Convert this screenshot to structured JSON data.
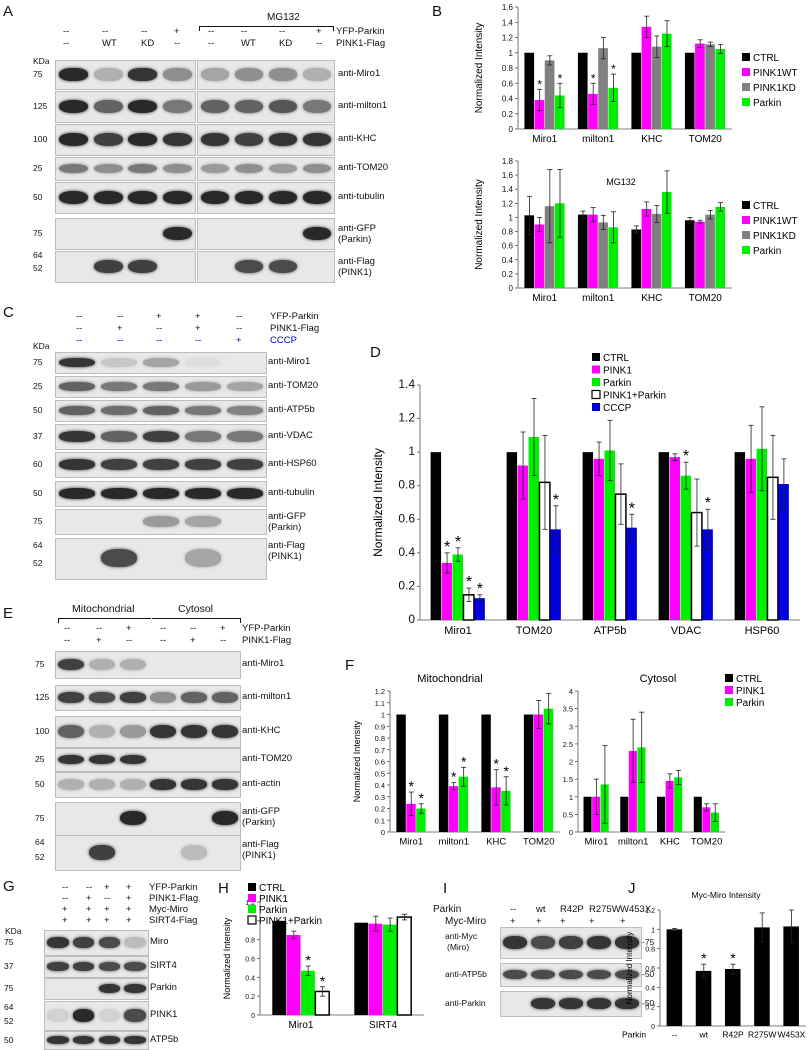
{
  "panels": {
    "A": {
      "letter": "A",
      "mg_label": "MG132",
      "row1_left": [
        "--",
        "--",
        "--",
        "+"
      ],
      "row2_left": [
        "--",
        "WT",
        "KD",
        "--"
      ],
      "row1_right": [
        "--",
        "--",
        "--",
        "+"
      ],
      "row2_right": [
        "--",
        "WT",
        "KD",
        "--"
      ],
      "treat1": "YFP-Parkin",
      "treat2": "PINK1-Flag",
      "kda": "KDa",
      "rows": [
        {
          "mw": "75",
          "label": "anti-Miro1"
        },
        {
          "mw": "125",
          "label": "anti-milton1"
        },
        {
          "mw": "100",
          "label": "anti-KHC"
        },
        {
          "mw": "25",
          "label": "anti-TOM20"
        },
        {
          "mw": "50",
          "label": "anti-tubulin"
        },
        {
          "mw": "75",
          "label": "anti-GFP",
          "label2": "(Parkin)"
        },
        {
          "mw": "64",
          "mw2": "52",
          "label": "anti-Flag",
          "label2": "(PINK1)"
        }
      ]
    },
    "B": {
      "letter": "B"
    },
    "C": {
      "letter": "C",
      "treat": [
        "YFP-Parkin",
        "PINK1-Flag",
        "CCCP"
      ],
      "row1": [
        "--",
        "--",
        "+",
        "+",
        "--"
      ],
      "row2": [
        "--",
        "+",
        "--",
        "+",
        "--"
      ],
      "row3": [
        "--",
        "--",
        "--",
        "--",
        "+"
      ],
      "kda": "KDa",
      "rows": [
        {
          "mw": "75",
          "label": "anti-Miro1"
        },
        {
          "mw": "25",
          "label": "anti-TOM20"
        },
        {
          "mw": "50",
          "label": "anti-ATP5b"
        },
        {
          "mw": "37",
          "label": "anti-VDAC"
        },
        {
          "mw": "60",
          "label": "anti-HSP60"
        },
        {
          "mw": "50",
          "label": "anti-tubulin"
        },
        {
          "mw": "75",
          "label": "anti-GFP",
          "label2": "(Parkin)"
        },
        {
          "mw": "64",
          "mw2": "52",
          "label": "anti-Flag",
          "label2": "(PINK1)"
        }
      ]
    },
    "D": {
      "letter": "D"
    },
    "E": {
      "letter": "E",
      "mito": "Mitochondrial",
      "cyto": "Cytosol",
      "treat": [
        "YFP-Parkin",
        "PINK1-Flag"
      ],
      "row1": [
        "--",
        "--",
        "+",
        "--",
        "--",
        "+"
      ],
      "row2": [
        "--",
        "+",
        "--",
        "--",
        "+",
        "--"
      ],
      "rows": [
        {
          "mw": "75",
          "label": "anti-Miro1"
        },
        {
          "mw": "125",
          "label": "anti-milton1"
        },
        {
          "mw": "100",
          "label": "anti-KHC"
        },
        {
          "mw": "25",
          "label": "anti-TOM20"
        },
        {
          "mw": "50",
          "label": "anti-actin"
        },
        {
          "mw": "75",
          "label": "anti-GFP",
          "label2": "(Parkin)"
        },
        {
          "mw": "64",
          "mw2": "52",
          "label": "anti-Flag",
          "label2": "(PINK1)"
        }
      ]
    },
    "F": {
      "letter": "F"
    },
    "G": {
      "letter": "G",
      "treat": [
        "YFP-Parkin",
        "PINK1-Flag",
        "Myc-Miro",
        "SIRT4-Flag"
      ],
      "row1": [
        "--",
        "--",
        "+",
        "+"
      ],
      "row2": [
        "--",
        "+",
        "--",
        "+"
      ],
      "row3": [
        "+",
        "+",
        "+",
        "+"
      ],
      "row4": [
        "+",
        "+",
        "+",
        "+"
      ],
      "kda": "KDa",
      "rows": [
        {
          "mw": "75",
          "label": "Miro"
        },
        {
          "mw": "37",
          "label": "SIRT4"
        },
        {
          "mw": "75",
          "label": "Parkin"
        },
        {
          "mw": "64",
          "mw2": "52",
          "label": "PINK1"
        },
        {
          "mw": "50",
          "label": "ATP5b"
        }
      ]
    },
    "H": {
      "letter": "H"
    },
    "I": {
      "letter": "I",
      "parkin": "Parkin",
      "myc": "Myc-Miro",
      "cols": [
        "--",
        "wt",
        "R42P",
        "R275W",
        "W453X"
      ],
      "myc_row": [
        "+",
        "+",
        "+",
        "+",
        "+"
      ],
      "rows": [
        {
          "label": "anti-Myc",
          "label2": "(Miro)",
          "mw": "-75"
        },
        {
          "label": "anti-ATP5b",
          "mw": "-50"
        },
        {
          "label": "anti-Parkin",
          "mw": "-50"
        }
      ]
    },
    "J": {
      "letter": "J"
    }
  },
  "colors": {
    "ctrl": "#000000",
    "pink1": "#ff00ff",
    "kd": "#808080",
    "parkin": "#00ee00",
    "both": "#ffffff",
    "cccp": "#0000dd"
  },
  "chart_data": [
    {
      "id": "B-top",
      "type": "bar",
      "ylabel": "Normalized Intensity",
      "ylim": [
        0,
        1.6
      ],
      "yticks": [
        0,
        0.2,
        0.4,
        0.6,
        0.8,
        1,
        1.2,
        1.4,
        1.6
      ],
      "categories": [
        "Miro1",
        "milton1",
        "KHC",
        "TOM20"
      ],
      "series": [
        {
          "name": "CTRL",
          "color": "#000000",
          "values": [
            1,
            1,
            1,
            1
          ],
          "err": [
            0,
            0,
            0,
            0
          ]
        },
        {
          "name": "PINK1WT",
          "color": "#ff00ff",
          "values": [
            0.38,
            0.46,
            1.34,
            1.12
          ],
          "err": [
            0.14,
            0.14,
            0.14,
            0.05
          ]
        },
        {
          "name": "PINK1KD",
          "color": "#808080",
          "values": [
            0.9,
            1.06,
            1.08,
            1.11
          ],
          "err": [
            0.06,
            0.14,
            0.14,
            0.03
          ]
        },
        {
          "name": "Parkin",
          "color": "#00ee00",
          "values": [
            0.44,
            0.54,
            1.25,
            1.05
          ],
          "err": [
            0.16,
            0.18,
            0.17,
            0.06
          ]
        }
      ],
      "stars": [
        [
          0,
          1
        ],
        [
          0,
          3
        ],
        [
          1,
          1
        ],
        [
          1,
          3
        ]
      ]
    },
    {
      "id": "B-bottom",
      "type": "bar",
      "ylabel": "Normalized Intensity",
      "title": "MG132",
      "ylim": [
        0,
        1.8
      ],
      "yticks": [
        0,
        0.2,
        0.4,
        0.6,
        0.8,
        1,
        1.2,
        1.4,
        1.6,
        1.8
      ],
      "categories": [
        "Miro1",
        "milton1",
        "KHC",
        "TOM20"
      ],
      "series": [
        {
          "name": "CTRL",
          "color": "#000000",
          "values": [
            1.03,
            1.04,
            0.83,
            0.96
          ],
          "err": [
            0.27,
            0.05,
            0.05,
            0.04
          ]
        },
        {
          "name": "PINK1WT",
          "color": "#ff00ff",
          "values": [
            0.9,
            1.04,
            1.12,
            0.94
          ],
          "err": [
            0.1,
            0.1,
            0.1,
            0.02
          ]
        },
        {
          "name": "PINK1KD",
          "color": "#808080",
          "values": [
            1.16,
            0.93,
            1.05,
            1.04
          ],
          "err": [
            0.52,
            0.1,
            0.12,
            0.06
          ]
        },
        {
          "name": "Parkin",
          "color": "#00ee00",
          "values": [
            1.2,
            0.86,
            1.36,
            1.15
          ],
          "err": [
            0.48,
            0.22,
            0.3,
            0.06
          ]
        }
      ],
      "stars": []
    },
    {
      "id": "D",
      "type": "bar",
      "ylabel": "Normalized Intensity",
      "ylim": [
        0,
        1.4
      ],
      "yticks": [
        0,
        0.2,
        0.4,
        0.6,
        0.8,
        1,
        1.2,
        1.4
      ],
      "categories": [
        "Miro1",
        "TOM20",
        "ATP5b",
        "VDAC",
        "HSP60"
      ],
      "series": [
        {
          "name": "CTRL",
          "color": "#000000",
          "values": [
            1,
            1,
            1,
            1,
            1
          ],
          "err": [
            0,
            0,
            0,
            0,
            0
          ]
        },
        {
          "name": "PINK1",
          "color": "#ff00ff",
          "values": [
            0.34,
            0.92,
            0.96,
            0.97,
            0.96
          ],
          "err": [
            0.06,
            0.2,
            0.1,
            0.02,
            0.2
          ]
        },
        {
          "name": "Parkin",
          "color": "#00ee00",
          "values": [
            0.39,
            1.09,
            1.01,
            0.86,
            1.02
          ],
          "err": [
            0.04,
            0.23,
            0.18,
            0.08,
            0.25
          ]
        },
        {
          "name": "PINK1+Parkin",
          "color": "#ffffff",
          "values": [
            0.15,
            0.82,
            0.75,
            0.64,
            0.85
          ],
          "err": [
            0.04,
            0.28,
            0.18,
            0.2,
            0.25
          ]
        },
        {
          "name": "CCCP",
          "color": "#0000dd",
          "values": [
            0.13,
            0.54,
            0.55,
            0.54,
            0.81
          ],
          "err": [
            0.02,
            0.14,
            0.08,
            0.12,
            0.15
          ]
        }
      ],
      "stars": [
        [
          0,
          1
        ],
        [
          0,
          2
        ],
        [
          0,
          3
        ],
        [
          0,
          4
        ],
        [
          1,
          4
        ],
        [
          2,
          4
        ],
        [
          3,
          2
        ],
        [
          3,
          4
        ]
      ]
    },
    {
      "id": "F-mito",
      "type": "bar",
      "ylabel": "Normalized Intensity",
      "title": "Mitochondrial",
      "ylim": [
        0,
        1.2
      ],
      "yticks": [
        0,
        0.1,
        0.2,
        0.3,
        0.4,
        0.5,
        0.6,
        0.7,
        0.8,
        0.9,
        1,
        1.1,
        1.2
      ],
      "categories": [
        "Miro1",
        "milton1",
        "KHC",
        "TOM20"
      ],
      "series": [
        {
          "name": "CTRL",
          "color": "#000000",
          "values": [
            1,
            1,
            1,
            1
          ],
          "err": [
            0,
            0,
            0,
            0
          ]
        },
        {
          "name": "PINK1",
          "color": "#ff00ff",
          "values": [
            0.24,
            0.39,
            0.38,
            1.0
          ],
          "err": [
            0.1,
            0.03,
            0.15,
            0.12
          ]
        },
        {
          "name": "Parkin",
          "color": "#00ee00",
          "values": [
            0.2,
            0.47,
            0.35,
            1.05
          ],
          "err": [
            0.04,
            0.08,
            0.12,
            0.13
          ]
        }
      ],
      "stars": [
        [
          0,
          1
        ],
        [
          0,
          2
        ],
        [
          1,
          1
        ],
        [
          1,
          2
        ],
        [
          2,
          1
        ],
        [
          2,
          2
        ]
      ]
    },
    {
      "id": "F-cyto",
      "type": "bar",
      "title": "Cytosol",
      "ylim": [
        0,
        4
      ],
      "yticks": [
        0,
        0.5,
        1,
        1.5,
        2,
        2.5,
        3,
        3.5,
        4
      ],
      "categories": [
        "Miro1",
        "milton1",
        "KHC",
        "TOM20"
      ],
      "series": [
        {
          "name": "CTRL",
          "color": "#000000",
          "values": [
            1,
            1,
            1,
            1
          ],
          "err": [
            0,
            0,
            0,
            0
          ]
        },
        {
          "name": "PINK1",
          "color": "#ff00ff",
          "values": [
            1.0,
            2.3,
            1.45,
            0.7
          ],
          "err": [
            0.5,
            0.9,
            0.2,
            0.1
          ]
        },
        {
          "name": "Parkin",
          "color": "#00ee00",
          "values": [
            1.35,
            2.4,
            1.55,
            0.55
          ],
          "err": [
            1.1,
            1.0,
            0.2,
            0.25
          ]
        }
      ],
      "stars": []
    },
    {
      "id": "H",
      "type": "bar",
      "ylabel": "Normalized Intensity",
      "ylim": [
        0,
        1.2
      ],
      "yticks": [
        0,
        0.2,
        0.4,
        0.6,
        0.8,
        1,
        1.2
      ],
      "categories": [
        "Miro1",
        "SIRT4"
      ],
      "series": [
        {
          "name": "CTRL",
          "color": "#000000",
          "values": [
            1,
            0.98
          ],
          "err": [
            0,
            0
          ]
        },
        {
          "name": "PINK1",
          "color": "#ff00ff",
          "values": [
            0.85,
            0.97
          ],
          "err": [
            0.04,
            0.08
          ]
        },
        {
          "name": "Parkin",
          "color": "#00ee00",
          "values": [
            0.47,
            0.96
          ],
          "err": [
            0.05,
            0.07
          ]
        },
        {
          "name": "PINK1+Parkin",
          "color": "#ffffff",
          "values": [
            0.25,
            1.04
          ],
          "err": [
            0.05,
            0.03
          ]
        }
      ],
      "stars": [
        [
          0,
          2
        ],
        [
          0,
          3
        ]
      ]
    },
    {
      "id": "J",
      "type": "bar",
      "title": "Myc-Miro Intensity",
      "ylabel": "Normalized Intensity",
      "ylim": [
        0,
        1.2
      ],
      "yticks": [
        0,
        0.2,
        0.4,
        0.6,
        0.8,
        1,
        1.2
      ],
      "xtitle": "Parkin",
      "categories": [
        "--",
        "wt",
        "R42P",
        "R275W",
        "W453X"
      ],
      "series": [
        {
          "name": "",
          "color": "#000000",
          "values": [
            1,
            0.57,
            0.59,
            1.02,
            1.03
          ],
          "err": [
            0.01,
            0.07,
            0.05,
            0.15,
            0.17
          ]
        }
      ],
      "stars": [
        [
          1,
          0
        ],
        [
          2,
          0
        ]
      ]
    }
  ]
}
